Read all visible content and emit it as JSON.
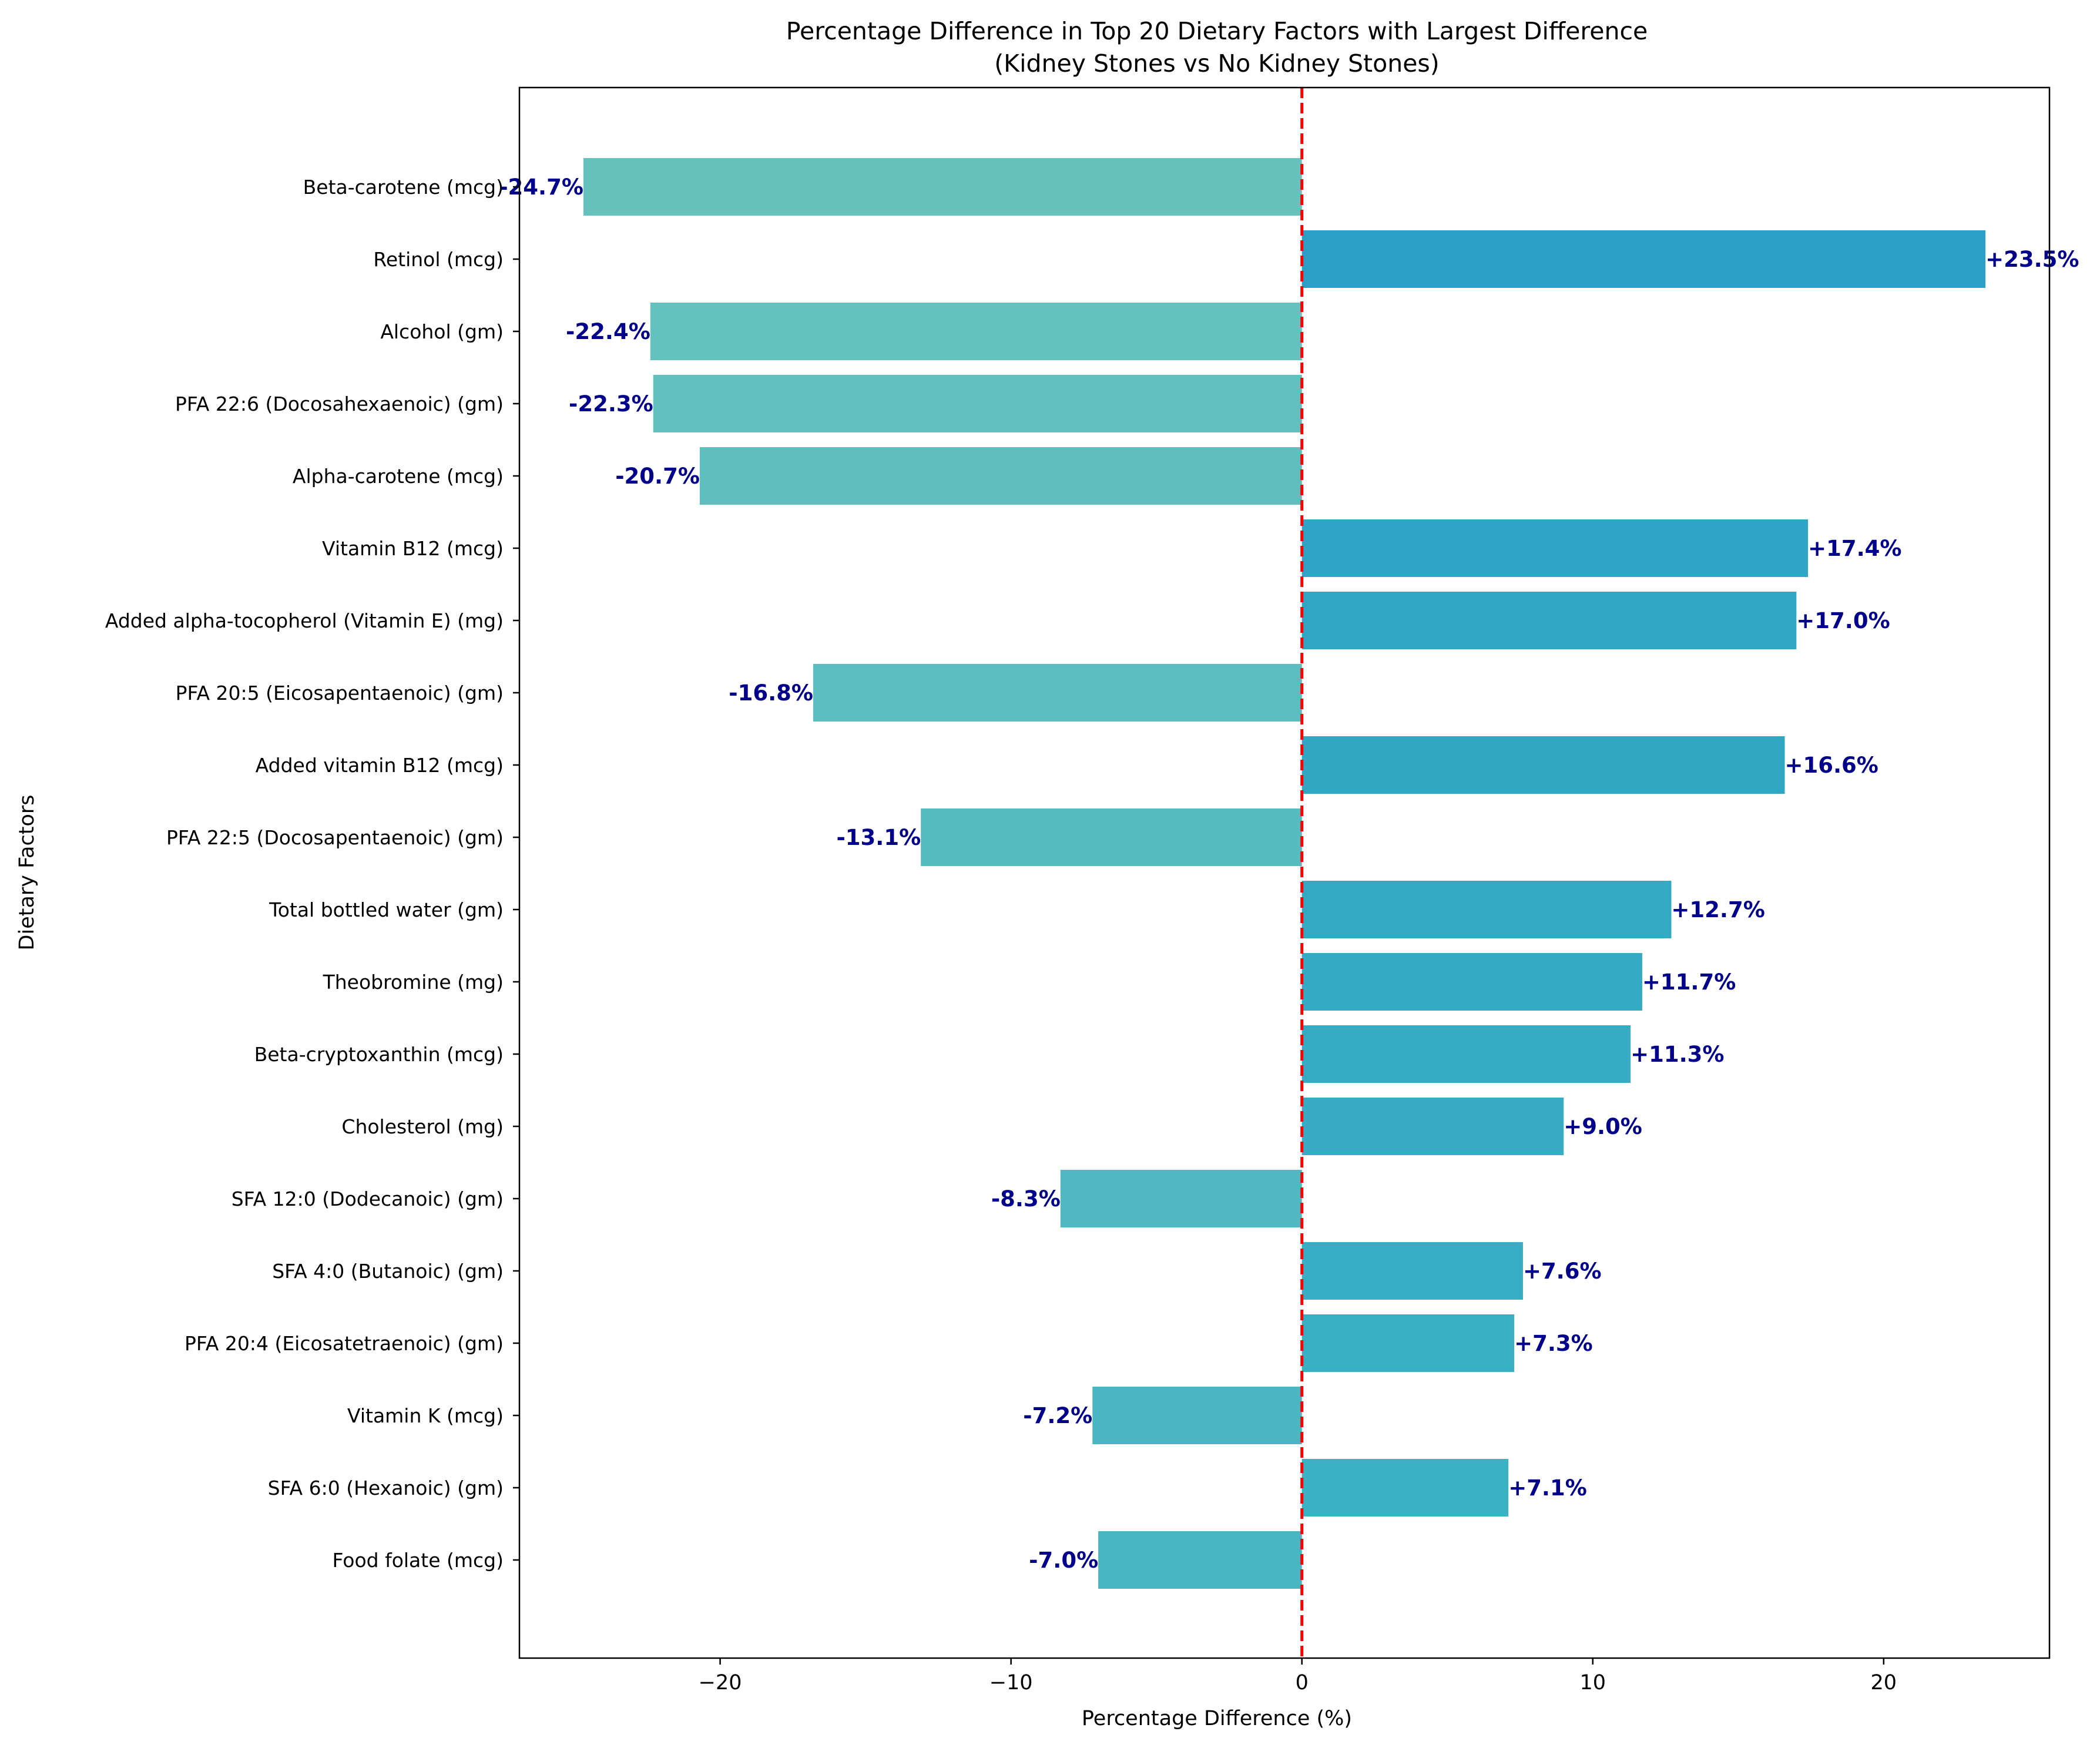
{
  "chart_data": {
    "type": "bar",
    "orientation": "horizontal",
    "title_line1": "Percentage Difference in Top 20 Dietary Factors with Largest Difference",
    "title_line2": "(Kidney Stones vs No Kidney Stones)",
    "xlabel": "Percentage Difference (%)",
    "ylabel": "Dietary Factors",
    "xlim": [
      -26.9,
      25.7
    ],
    "xticks": [
      -20,
      -10,
      0,
      10,
      20
    ],
    "xtick_labels": [
      "−20",
      "−10",
      "0",
      "10",
      "20"
    ],
    "grid": false,
    "legend": "none",
    "reference_line": {
      "x": 0,
      "color": "#ff0000",
      "style": "dashed"
    },
    "categories": [
      "Beta-carotene (mcg)",
      "Retinol (mcg)",
      "Alcohol (gm)",
      "PFA 22:6 (Docosahexaenoic) (gm)",
      "Alpha-carotene (mcg)",
      "Vitamin B12 (mcg)",
      "Added alpha-tocopherol (Vitamin E) (mg)",
      "PFA 20:5 (Eicosapentaenoic) (gm)",
      "Added vitamin B12 (mcg)",
      "PFA 22:5 (Docosapentaenoic) (gm)",
      "Total bottled water (gm)",
      "Theobromine (mg)",
      "Beta-cryptoxanthin (mcg)",
      "Cholesterol (mg)",
      "SFA 12:0 (Dodecanoic) (gm)",
      "SFA 4:0 (Butanoic) (gm)",
      "PFA 20:4 (Eicosatetraenoic) (gm)",
      "Vitamin K (mcg)",
      "SFA 6:0 (Hexanoic) (gm)",
      "Food folate (mcg)"
    ],
    "values": [
      -24.7,
      23.5,
      -22.4,
      -22.3,
      -20.7,
      17.4,
      17.0,
      -16.8,
      16.6,
      -13.1,
      12.7,
      11.7,
      11.3,
      9.0,
      -8.3,
      7.6,
      7.3,
      -7.2,
      7.1,
      -7.0
    ],
    "value_labels": [
      "-24.7%",
      "+23.5%",
      "-22.4%",
      "-22.3%",
      "-20.7%",
      "+17.4%",
      "+17.0%",
      "-16.8%",
      "+16.6%",
      "-13.1%",
      "+12.7%",
      "+11.7%",
      "+11.3%",
      "+9.0%",
      "-8.3%",
      "+7.6%",
      "+7.3%",
      "-7.2%",
      "+7.1%",
      "-7.0%"
    ],
    "colors": {
      "negative_start": "#66c2bd",
      "negative_end": "#47b5c2",
      "positive_start": "#2b9fc4",
      "positive_end": "#3cb2c4",
      "value_label": "#00008b",
      "axis": "#000000"
    }
  }
}
